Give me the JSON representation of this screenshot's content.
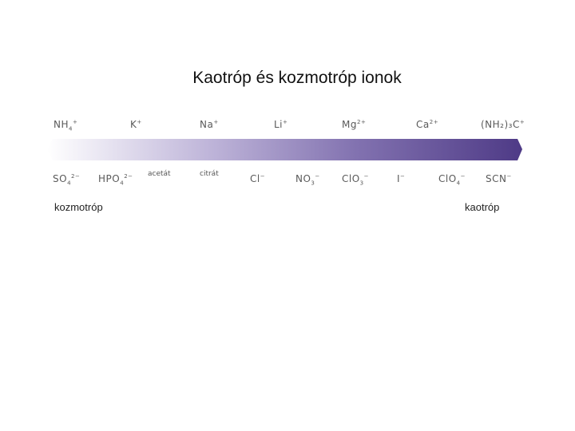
{
  "title": "Kaotróp és kozmotróp ionok",
  "cations": [
    {
      "base": "NH",
      "sub": "4",
      "sup": "+"
    },
    {
      "base": "K",
      "sub": "",
      "sup": "+"
    },
    {
      "base": "Na",
      "sub": "",
      "sup": "+"
    },
    {
      "base": "Li",
      "sub": "",
      "sup": "+"
    },
    {
      "base": "Mg",
      "sub": "",
      "sup": "2+"
    },
    {
      "base": "Ca",
      "sub": "",
      "sup": "2+"
    },
    {
      "base": "(NH₂)₃C",
      "sub": "",
      "sup": "+"
    }
  ],
  "anions": [
    {
      "base": "SO",
      "sub": "4",
      "sup": "2−"
    },
    {
      "base": "HPO",
      "sub": "4",
      "sup": "2−"
    },
    {
      "base": "Cl",
      "sub": "",
      "sup": "−"
    },
    {
      "base": "NO",
      "sub": "3",
      "sup": "−"
    },
    {
      "base": "ClO",
      "sub": "3",
      "sup": "−"
    },
    {
      "base": "I",
      "sub": "",
      "sup": "−"
    },
    {
      "base": "ClO",
      "sub": "4",
      "sup": "−"
    },
    {
      "base": "SCN",
      "sub": "",
      "sup": "−"
    }
  ],
  "small_labels": {
    "acetate": "acetát",
    "citrate": "citrát"
  },
  "left_label": "kozmotróp",
  "right_label": "kaotróp",
  "colors": {
    "arrow_light": "#ffffff",
    "arrow_dark": "#4e3a86",
    "text_ion": "#5a5a5a"
  }
}
